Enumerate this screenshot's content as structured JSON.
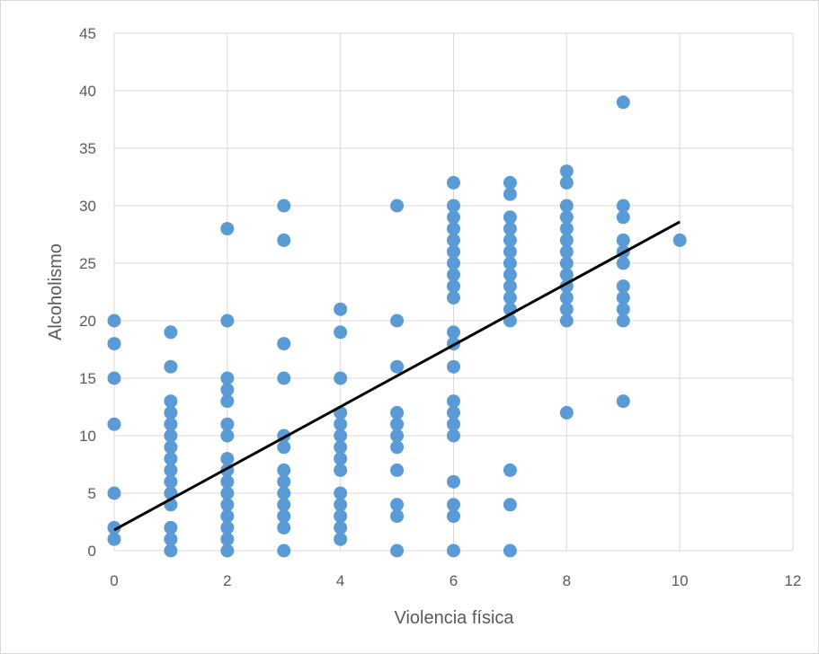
{
  "chart_data": {
    "type": "scatter",
    "title": "",
    "xlabel": "Violencia física",
    "ylabel": "Alcoholismo",
    "xlim": [
      0,
      12
    ],
    "ylim": [
      0,
      45
    ],
    "x_ticks": [
      0,
      2,
      4,
      6,
      8,
      10,
      12
    ],
    "y_ticks": [
      0,
      5,
      10,
      15,
      20,
      25,
      30,
      35,
      40,
      45
    ],
    "grid": true,
    "legend": "none",
    "marker_color": "#5b9bd5",
    "trendline_color": "#000000",
    "points": [
      [
        0,
        1
      ],
      [
        0,
        2
      ],
      [
        0,
        5
      ],
      [
        0,
        11
      ],
      [
        0,
        15
      ],
      [
        0,
        18
      ],
      [
        0,
        20
      ],
      [
        1,
        0
      ],
      [
        1,
        1
      ],
      [
        1,
        2
      ],
      [
        1,
        4
      ],
      [
        1,
        5
      ],
      [
        1,
        6
      ],
      [
        1,
        7
      ],
      [
        1,
        8
      ],
      [
        1,
        9
      ],
      [
        1,
        10
      ],
      [
        1,
        11
      ],
      [
        1,
        12
      ],
      [
        1,
        13
      ],
      [
        1,
        16
      ],
      [
        1,
        19
      ],
      [
        2,
        0
      ],
      [
        2,
        1
      ],
      [
        2,
        2
      ],
      [
        2,
        3
      ],
      [
        2,
        4
      ],
      [
        2,
        5
      ],
      [
        2,
        6
      ],
      [
        2,
        7
      ],
      [
        2,
        8
      ],
      [
        2,
        10
      ],
      [
        2,
        11
      ],
      [
        2,
        13
      ],
      [
        2,
        14
      ],
      [
        2,
        15
      ],
      [
        2,
        20
      ],
      [
        2,
        28
      ],
      [
        3,
        0
      ],
      [
        3,
        2
      ],
      [
        3,
        3
      ],
      [
        3,
        4
      ],
      [
        3,
        5
      ],
      [
        3,
        6
      ],
      [
        3,
        7
      ],
      [
        3,
        9
      ],
      [
        3,
        10
      ],
      [
        3,
        15
      ],
      [
        3,
        18
      ],
      [
        3,
        27
      ],
      [
        3,
        30
      ],
      [
        4,
        1
      ],
      [
        4,
        2
      ],
      [
        4,
        3
      ],
      [
        4,
        4
      ],
      [
        4,
        5
      ],
      [
        4,
        7
      ],
      [
        4,
        8
      ],
      [
        4,
        9
      ],
      [
        4,
        10
      ],
      [
        4,
        11
      ],
      [
        4,
        12
      ],
      [
        4,
        15
      ],
      [
        4,
        19
      ],
      [
        4,
        21
      ],
      [
        5,
        0
      ],
      [
        5,
        3
      ],
      [
        5,
        4
      ],
      [
        5,
        7
      ],
      [
        5,
        9
      ],
      [
        5,
        10
      ],
      [
        5,
        11
      ],
      [
        5,
        12
      ],
      [
        5,
        16
      ],
      [
        5,
        20
      ],
      [
        5,
        30
      ],
      [
        6,
        0
      ],
      [
        6,
        3
      ],
      [
        6,
        4
      ],
      [
        6,
        6
      ],
      [
        6,
        10
      ],
      [
        6,
        11
      ],
      [
        6,
        12
      ],
      [
        6,
        13
      ],
      [
        6,
        16
      ],
      [
        6,
        18
      ],
      [
        6,
        19
      ],
      [
        6,
        22
      ],
      [
        6,
        23
      ],
      [
        6,
        24
      ],
      [
        6,
        25
      ],
      [
        6,
        26
      ],
      [
        6,
        27
      ],
      [
        6,
        28
      ],
      [
        6,
        29
      ],
      [
        6,
        30
      ],
      [
        6,
        32
      ],
      [
        7,
        0
      ],
      [
        7,
        4
      ],
      [
        7,
        7
      ],
      [
        7,
        20
      ],
      [
        7,
        21
      ],
      [
        7,
        22
      ],
      [
        7,
        23
      ],
      [
        7,
        24
      ],
      [
        7,
        25
      ],
      [
        7,
        26
      ],
      [
        7,
        27
      ],
      [
        7,
        28
      ],
      [
        7,
        29
      ],
      [
        7,
        31
      ],
      [
        7,
        32
      ],
      [
        8,
        12
      ],
      [
        8,
        20
      ],
      [
        8,
        21
      ],
      [
        8,
        22
      ],
      [
        8,
        23
      ],
      [
        8,
        24
      ],
      [
        8,
        25
      ],
      [
        8,
        26
      ],
      [
        8,
        27
      ],
      [
        8,
        28
      ],
      [
        8,
        29
      ],
      [
        8,
        30
      ],
      [
        8,
        32
      ],
      [
        8,
        33
      ],
      [
        9,
        13
      ],
      [
        9,
        20
      ],
      [
        9,
        21
      ],
      [
        9,
        22
      ],
      [
        9,
        23
      ],
      [
        9,
        25
      ],
      [
        9,
        26
      ],
      [
        9,
        27
      ],
      [
        9,
        29
      ],
      [
        9,
        30
      ],
      [
        9,
        39
      ],
      [
        10,
        27
      ]
    ],
    "trendline": {
      "x": [
        0,
        10
      ],
      "y": [
        1.8,
        28.6
      ]
    }
  }
}
